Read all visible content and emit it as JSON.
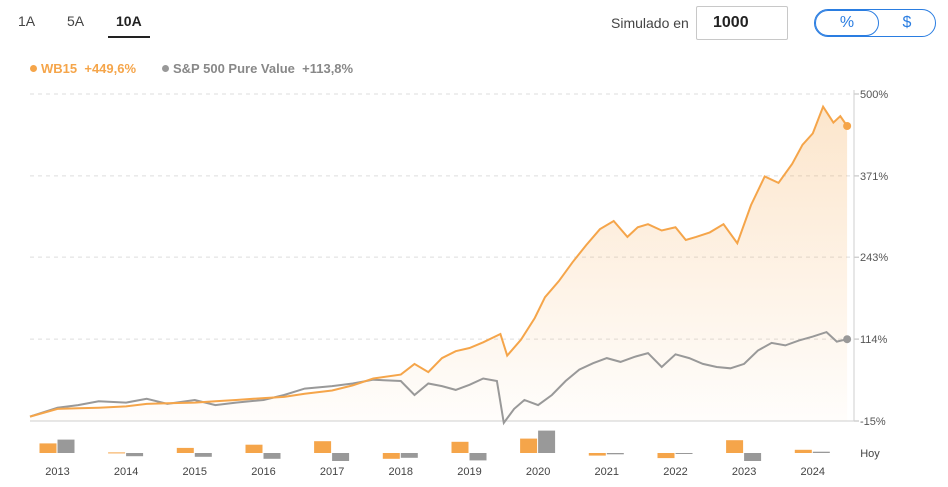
{
  "tabs": [
    {
      "label": "1A",
      "active": false
    },
    {
      "label": "5A",
      "active": false
    },
    {
      "label": "10A",
      "active": true
    }
  ],
  "simulator": {
    "label": "Simulado en",
    "value": "1000"
  },
  "toggle": {
    "percent_label": "%",
    "dollar_label": "$",
    "selected": "%"
  },
  "colors": {
    "wb15": "#f5a54a",
    "sp500": "#999999",
    "grid": "#dddddd"
  },
  "chart_data": {
    "type": "line",
    "title": "",
    "series": [
      {
        "name": "WB15",
        "legend_label": "WB15",
        "change_label": "+449,6%",
        "color": "#f5a54a",
        "x": [
          2012.6,
          2013.0,
          2013.3,
          2013.6,
          2014.0,
          2014.3,
          2014.6,
          2015.0,
          2015.3,
          2015.6,
          2016.0,
          2016.3,
          2016.6,
          2017.0,
          2017.3,
          2017.6,
          2018.0,
          2018.2,
          2018.4,
          2018.6,
          2018.8,
          2019.0,
          2019.2,
          2019.45,
          2019.55,
          2019.75,
          2019.95,
          2020.1,
          2020.3,
          2020.5,
          2020.7,
          2020.9,
          2021.1,
          2021.3,
          2021.45,
          2021.6,
          2021.8,
          2022.0,
          2022.15,
          2022.3,
          2022.5,
          2022.7,
          2022.9,
          2023.1,
          2023.3,
          2023.5,
          2023.7,
          2023.85,
          2024.0,
          2024.15,
          2024.3,
          2024.4,
          2024.5
        ],
        "values": [
          -8,
          4,
          5,
          6,
          8,
          12,
          13,
          14,
          16,
          18,
          21,
          23,
          28,
          33,
          41,
          52,
          58,
          75,
          62,
          84,
          95,
          100,
          109,
          122,
          88,
          113,
          147,
          180,
          205,
          235,
          262,
          287,
          300,
          275,
          290,
          295,
          285,
          290,
          270,
          275,
          282,
          295,
          265,
          325,
          370,
          360,
          390,
          420,
          438,
          480,
          455,
          465,
          449.6
        ]
      },
      {
        "name": "S&P 500 Pure Value",
        "legend_label": "S&P 500 Pure Value",
        "change_label": "+113,8%",
        "color": "#999999",
        "x": [
          2012.6,
          2013.0,
          2013.3,
          2013.6,
          2014.0,
          2014.3,
          2014.6,
          2015.0,
          2015.3,
          2015.6,
          2016.0,
          2016.3,
          2016.6,
          2017.0,
          2017.3,
          2017.6,
          2018.0,
          2018.2,
          2018.4,
          2018.6,
          2018.8,
          2019.0,
          2019.2,
          2019.4,
          2019.5,
          2019.65,
          2019.8,
          2020.0,
          2020.2,
          2020.4,
          2020.6,
          2020.8,
          2021.0,
          2021.2,
          2021.4,
          2021.6,
          2021.8,
          2022.0,
          2022.2,
          2022.4,
          2022.6,
          2022.8,
          2023.0,
          2023.2,
          2023.4,
          2023.6,
          2023.8,
          2024.0,
          2024.2,
          2024.35,
          2024.5
        ],
        "values": [
          -8,
          6,
          10,
          16,
          14,
          20,
          12,
          18,
          10,
          14,
          18,
          26,
          36,
          40,
          44,
          50,
          48,
          26,
          44,
          40,
          34,
          42,
          52,
          48,
          -18,
          4,
          18,
          10,
          26,
          48,
          66,
          76,
          84,
          78,
          86,
          92,
          70,
          90,
          84,
          75,
          70,
          68,
          75,
          96,
          108,
          104,
          112,
          118,
          125,
          110,
          113.8
        ]
      }
    ],
    "y_ticks": [
      "500%",
      "371%",
      "243%",
      "114%",
      "-15%"
    ],
    "y_tick_values": [
      500,
      371,
      243,
      114,
      -15
    ],
    "ylim": [
      -15,
      500
    ],
    "xlim": [
      2012.6,
      2024.6
    ],
    "x_tick_labels": [
      "2013",
      "2014",
      "2015",
      "2016",
      "2017",
      "2018",
      "2019",
      "2020",
      "2021",
      "2022",
      "2023",
      "2024",
      "Hoy"
    ],
    "annual_bars": {
      "years": [
        "2013",
        "2014",
        "2015",
        "2016",
        "2017",
        "2018",
        "2019",
        "2020",
        "2021",
        "2022",
        "2023",
        "2024"
      ],
      "wb15": [
        30,
        2,
        16,
        26,
        37,
        -18,
        35,
        45,
        -8,
        -16,
        40,
        10
      ],
      "sp500": [
        42,
        -10,
        -12,
        -18,
        -25,
        -15,
        -23,
        70,
        -4,
        0,
        -25,
        4
      ]
    },
    "grid": true,
    "legend_position": "top-left"
  }
}
